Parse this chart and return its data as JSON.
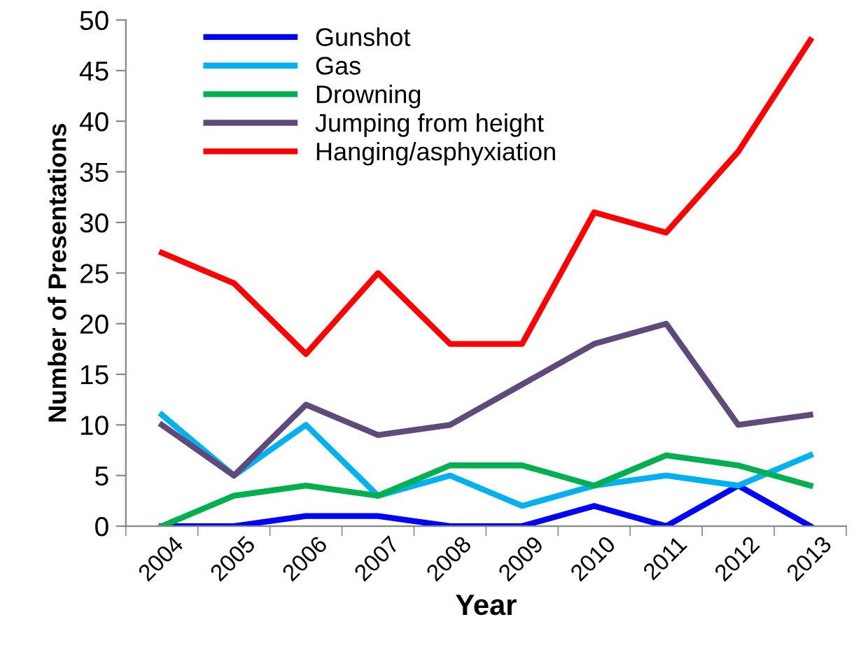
{
  "chart_data": {
    "type": "line",
    "xlabel": "Year",
    "ylabel": "Number of Presentations",
    "categories": [
      "2004",
      "2005",
      "2006",
      "2007",
      "2008",
      "2009",
      "2010",
      "2011",
      "2012",
      "2013"
    ],
    "ylim": [
      0,
      50
    ],
    "yticks": [
      0,
      5,
      10,
      15,
      20,
      25,
      30,
      35,
      40,
      45,
      50
    ],
    "grid": false,
    "legend": "top left",
    "marker": "none",
    "line_style": "solid",
    "series": [
      {
        "name": "Gunshot",
        "color": "#0000ff",
        "values": [
          0,
          0,
          1,
          1,
          0,
          0,
          2,
          0,
          4,
          0
        ]
      },
      {
        "name": "Gas",
        "color": "#00b0f0",
        "values": [
          11,
          5,
          10,
          3,
          5,
          2,
          4,
          5,
          4,
          7
        ]
      },
      {
        "name": "Drowning",
        "color": "#00b050",
        "values": [
          0,
          3,
          4,
          3,
          6,
          6,
          4,
          7,
          6,
          4
        ]
      },
      {
        "name": "Jumping from height",
        "color": "#604a7b",
        "values": [
          10,
          5,
          12,
          9,
          10,
          14,
          18,
          20,
          10,
          11
        ]
      },
      {
        "name": "Hanging/asphyxiation",
        "color": "#ff0000",
        "values": [
          27,
          24,
          17,
          25,
          18,
          18,
          31,
          29,
          37,
          48
        ]
      }
    ]
  }
}
